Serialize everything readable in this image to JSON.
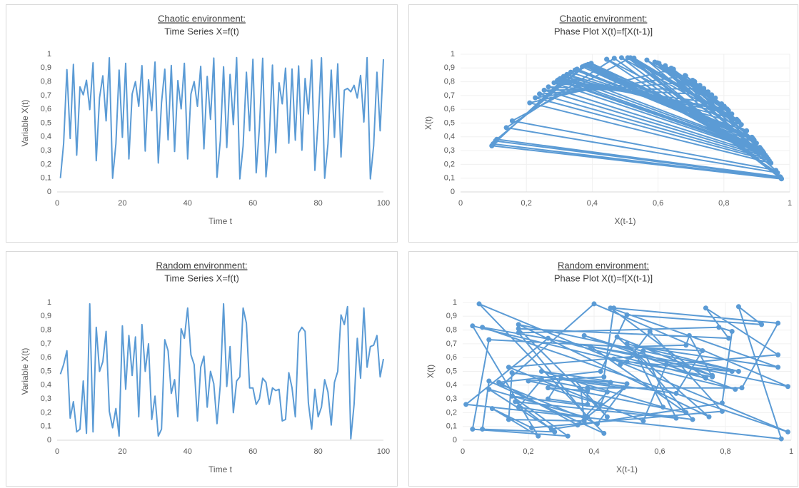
{
  "chart_data": [
    {
      "type": "line",
      "title": "Chaotic environment:",
      "subtitle": "Time Series X=f(t)",
      "x_label": "Time t",
      "y_label": "Variable X(t)",
      "color": "#5b9bd5",
      "xlim": [
        0,
        100
      ],
      "ylim": [
        0,
        1
      ],
      "xticks": [
        0,
        20,
        40,
        60,
        80,
        100
      ],
      "yticks": [
        0,
        {
          "value": 0.1,
          "label": "0,1"
        },
        {
          "value": 0.2,
          "label": "0,2"
        },
        {
          "value": 0.3,
          "label": "0,3"
        },
        {
          "value": 0.4,
          "label": "0,4"
        },
        {
          "value": 0.5,
          "label": "0,5"
        },
        {
          "value": 0.6,
          "label": "0,6"
        },
        {
          "value": 0.7,
          "label": "0,7"
        },
        {
          "value": 0.8,
          "label": "0,8"
        },
        {
          "value": 0.9,
          "label": "0,9"
        },
        1
      ],
      "x": [
        1,
        2,
        3,
        4,
        5,
        6,
        7,
        8,
        9,
        10,
        11,
        12,
        13,
        14,
        15,
        16,
        17,
        18,
        19,
        20,
        21,
        22,
        23,
        24,
        25,
        26,
        27,
        28,
        29,
        30,
        31,
        32,
        33,
        34,
        35,
        36,
        37,
        38,
        39,
        40,
        41,
        42,
        43,
        44,
        45,
        46,
        47,
        48,
        49,
        50,
        51,
        52,
        53,
        54,
        55,
        56,
        57,
        58,
        59,
        60,
        61,
        62,
        63,
        64,
        65,
        66,
        67,
        68,
        69,
        70,
        71,
        72,
        73,
        74,
        75,
        76,
        77,
        78,
        79,
        80,
        81,
        82,
        83,
        84,
        85,
        86,
        87,
        88,
        89,
        90,
        91,
        92,
        93,
        94,
        95,
        96,
        97,
        98,
        99,
        100
      ],
      "values": [
        0.1,
        0.351,
        0.888,
        0.388,
        0.926,
        0.267,
        0.763,
        0.705,
        0.811,
        0.598,
        0.938,
        0.227,
        0.684,
        0.843,
        0.516,
        0.974,
        0.099,
        0.348,
        0.885,
        0.397,
        0.934,
        0.24,
        0.711,
        0.801,
        0.622,
        0.917,
        0.297,
        0.814,
        0.59,
        0.943,
        0.21,
        0.647,
        0.891,
        0.379,
        0.918,
        0.294,
        0.809,
        0.603,
        0.934,
        0.24,
        0.711,
        0.801,
        0.622,
        0.912,
        0.313,
        0.839,
        0.527,
        0.972,
        0.106,
        0.37,
        0.909,
        0.323,
        0.853,
        0.489,
        0.975,
        0.095,
        0.335,
        0.869,
        0.444,
        0.963,
        0.139,
        0.467,
        0.971,
        0.11,
        0.382,
        0.921,
        0.284,
        0.793,
        0.64,
        0.899,
        0.354,
        0.892,
        0.376,
        0.915,
        0.303,
        0.824,
        0.566,
        0.958,
        0.157,
        0.516,
        0.974,
        0.099,
        0.348,
        0.885,
        0.397,
        0.93,
        0.254,
        0.739,
        0.752,
        0.727,
        0.774,
        0.682,
        0.846,
        0.508,
        0.975,
        0.095,
        0.335,
        0.869,
        0.444,
        0.963
      ]
    },
    {
      "type": "scatter",
      "title": "Chaotic environment:",
      "subtitle": "Phase Plot X(t)=f[X(t-1)]",
      "x_label": "X(t-1)",
      "y_label": "X(t)",
      "color": "#5b9bd5",
      "connect": true,
      "xlim": [
        0,
        1
      ],
      "ylim": [
        0,
        1
      ],
      "xticks": [
        0,
        {
          "value": 0.2,
          "label": "0,2"
        },
        {
          "value": 0.4,
          "label": "0,4"
        },
        {
          "value": 0.6,
          "label": "0,6"
        },
        {
          "value": 0.8,
          "label": "0,8"
        },
        1
      ],
      "yticks": [
        0,
        {
          "value": 0.1,
          "label": "0,1"
        },
        {
          "value": 0.2,
          "label": "0,2"
        },
        {
          "value": 0.3,
          "label": "0,3"
        },
        {
          "value": 0.4,
          "label": "0,4"
        },
        {
          "value": 0.5,
          "label": "0,5"
        },
        {
          "value": 0.6,
          "label": "0,6"
        },
        {
          "value": 0.7,
          "label": "0,7"
        },
        {
          "value": 0.8,
          "label": "0,8"
        },
        {
          "value": 0.9,
          "label": "0,9"
        },
        1
      ],
      "x": [
        0.1,
        0.351,
        0.888,
        0.388,
        0.926,
        0.267,
        0.763,
        0.705,
        0.811,
        0.598,
        0.938,
        0.227,
        0.684,
        0.843,
        0.516,
        0.974,
        0.099,
        0.348,
        0.885,
        0.397,
        0.934,
        0.24,
        0.711,
        0.801,
        0.622,
        0.917,
        0.297,
        0.814,
        0.59,
        0.943,
        0.21,
        0.647,
        0.891,
        0.379,
        0.918,
        0.294,
        0.809,
        0.603,
        0.934,
        0.24,
        0.711,
        0.801,
        0.622,
        0.912,
        0.313,
        0.839,
        0.527,
        0.972,
        0.106,
        0.37,
        0.909,
        0.323,
        0.853,
        0.489,
        0.975,
        0.095,
        0.335,
        0.869,
        0.444,
        0.963,
        0.139,
        0.467,
        0.971,
        0.11,
        0.382,
        0.921,
        0.284,
        0.793,
        0.64,
        0.899,
        0.354,
        0.892,
        0.376,
        0.915,
        0.303,
        0.824,
        0.566,
        0.958,
        0.157,
        0.516,
        0.974,
        0.099,
        0.348,
        0.885,
        0.397,
        0.93,
        0.254,
        0.739,
        0.752,
        0.727,
        0.774,
        0.682,
        0.846,
        0.508,
        0.975,
        0.095,
        0.335,
        0.869,
        0.444
      ],
      "y": [
        0.351,
        0.888,
        0.388,
        0.926,
        0.267,
        0.763,
        0.705,
        0.811,
        0.598,
        0.938,
        0.227,
        0.684,
        0.843,
        0.516,
        0.974,
        0.099,
        0.348,
        0.885,
        0.397,
        0.934,
        0.24,
        0.711,
        0.801,
        0.622,
        0.917,
        0.297,
        0.814,
        0.59,
        0.943,
        0.21,
        0.647,
        0.891,
        0.379,
        0.918,
        0.294,
        0.809,
        0.603,
        0.934,
        0.24,
        0.711,
        0.801,
        0.622,
        0.912,
        0.313,
        0.839,
        0.527,
        0.972,
        0.106,
        0.37,
        0.909,
        0.323,
        0.853,
        0.489,
        0.975,
        0.095,
        0.335,
        0.869,
        0.444,
        0.963,
        0.139,
        0.467,
        0.971,
        0.11,
        0.382,
        0.921,
        0.284,
        0.793,
        0.64,
        0.899,
        0.354,
        0.892,
        0.376,
        0.915,
        0.303,
        0.824,
        0.566,
        0.958,
        0.157,
        0.516,
        0.974,
        0.099,
        0.348,
        0.885,
        0.397,
        0.93,
        0.254,
        0.739,
        0.752,
        0.727,
        0.774,
        0.682,
        0.846,
        0.508,
        0.975,
        0.095,
        0.335,
        0.869,
        0.444,
        0.963
      ]
    },
    {
      "type": "line",
      "title": "Random environment:",
      "subtitle": "Time Series X=f(t)",
      "x_label": "Time t",
      "y_label": "Variable X(t)",
      "color": "#5b9bd5",
      "xlim": [
        0,
        100
      ],
      "ylim": [
        0,
        1
      ],
      "xticks": [
        0,
        20,
        40,
        60,
        80,
        100
      ],
      "yticks": [
        0,
        {
          "value": 0.1,
          "label": "0,1"
        },
        {
          "value": 0.2,
          "label": "0,2"
        },
        {
          "value": 0.3,
          "label": "0,3"
        },
        {
          "value": 0.4,
          "label": "0,4"
        },
        {
          "value": 0.5,
          "label": "0,5"
        },
        {
          "value": 0.6,
          "label": "0,6"
        },
        {
          "value": 0.7,
          "label": "0,7"
        },
        {
          "value": 0.8,
          "label": "0,8"
        },
        {
          "value": 0.9,
          "label": "0,9"
        },
        1
      ],
      "x": [
        1,
        2,
        3,
        4,
        5,
        6,
        7,
        8,
        9,
        10,
        11,
        12,
        13,
        14,
        15,
        16,
        17,
        18,
        19,
        20,
        21,
        22,
        23,
        24,
        25,
        26,
        27,
        28,
        29,
        30,
        31,
        32,
        33,
        34,
        35,
        36,
        37,
        38,
        39,
        40,
        41,
        42,
        43,
        44,
        45,
        46,
        47,
        48,
        49,
        50,
        51,
        52,
        53,
        54,
        55,
        56,
        57,
        58,
        59,
        60,
        61,
        62,
        63,
        64,
        65,
        66,
        67,
        68,
        69,
        70,
        71,
        72,
        73,
        74,
        75,
        76,
        77,
        78,
        79,
        80,
        81,
        82,
        83,
        84,
        85,
        86,
        87,
        88,
        89,
        90,
        91,
        92,
        93,
        94,
        95,
        96,
        97,
        98,
        99,
        100
      ],
      "values": [
        0.48,
        0.55,
        0.65,
        0.16,
        0.28,
        0.06,
        0.08,
        0.43,
        0.05,
        0.99,
        0.06,
        0.82,
        0.5,
        0.57,
        0.79,
        0.21,
        0.09,
        0.23,
        0.03,
        0.83,
        0.37,
        0.76,
        0.47,
        0.75,
        0.17,
        0.84,
        0.5,
        0.7,
        0.15,
        0.32,
        0.03,
        0.08,
        0.73,
        0.65,
        0.34,
        0.44,
        0.17,
        0.81,
        0.74,
        0.96,
        0.62,
        0.55,
        0.14,
        0.53,
        0.61,
        0.24,
        0.5,
        0.41,
        0.12,
        0.4,
        0.99,
        0.39,
        0.68,
        0.2,
        0.43,
        0.46,
        0.96,
        0.85,
        0.38,
        0.38,
        0.26,
        0.3,
        0.45,
        0.42,
        0.26,
        0.38,
        0.36,
        0.37,
        0.14,
        0.15,
        0.49,
        0.38,
        0.17,
        0.78,
        0.82,
        0.79,
        0.27,
        0.08,
        0.37,
        0.17,
        0.24,
        0.44,
        0.35,
        0.11,
        0.42,
        0.5,
        0.91,
        0.84,
        0.97,
        0.01,
        0.26,
        0.74,
        0.45,
        0.96,
        0.53,
        0.68,
        0.69,
        0.76,
        0.46,
        0.59
      ]
    },
    {
      "type": "scatter",
      "title": "Random environment:",
      "subtitle": "Phase Plot X(t)=f[X(t-1)]",
      "x_label": "X(t-1)",
      "y_label": "X(t)",
      "color": "#5b9bd5",
      "connect": true,
      "xlim": [
        0,
        1
      ],
      "ylim": [
        0,
        1
      ],
      "xticks": [
        0,
        {
          "value": 0.2,
          "label": "0,2"
        },
        {
          "value": 0.4,
          "label": "0,4"
        },
        {
          "value": 0.6,
          "label": "0,6"
        },
        {
          "value": 0.8,
          "label": "0,8"
        },
        1
      ],
      "yticks": [
        0,
        {
          "value": 0.1,
          "label": "0,1"
        },
        {
          "value": 0.2,
          "label": "0,2"
        },
        {
          "value": 0.3,
          "label": "0,3"
        },
        {
          "value": 0.4,
          "label": "0,4"
        },
        {
          "value": 0.5,
          "label": "0,5"
        },
        {
          "value": 0.6,
          "label": "0,6"
        },
        {
          "value": 0.7,
          "label": "0,7"
        },
        {
          "value": 0.8,
          "label": "0,8"
        },
        {
          "value": 0.9,
          "label": "0,9"
        },
        1
      ],
      "x": [
        0.48,
        0.55,
        0.65,
        0.16,
        0.28,
        0.06,
        0.08,
        0.43,
        0.05,
        0.99,
        0.06,
        0.82,
        0.5,
        0.57,
        0.79,
        0.21,
        0.09,
        0.23,
        0.03,
        0.83,
        0.37,
        0.76,
        0.47,
        0.75,
        0.17,
        0.84,
        0.5,
        0.7,
        0.15,
        0.32,
        0.03,
        0.08,
        0.73,
        0.65,
        0.34,
        0.44,
        0.17,
        0.81,
        0.74,
        0.96,
        0.62,
        0.55,
        0.14,
        0.53,
        0.61,
        0.24,
        0.5,
        0.41,
        0.12,
        0.4,
        0.99,
        0.39,
        0.68,
        0.2,
        0.43,
        0.46,
        0.96,
        0.85,
        0.38,
        0.38,
        0.26,
        0.3,
        0.45,
        0.42,
        0.26,
        0.38,
        0.36,
        0.37,
        0.14,
        0.15,
        0.49,
        0.38,
        0.17,
        0.78,
        0.82,
        0.79,
        0.27,
        0.08,
        0.37,
        0.17,
        0.24,
        0.44,
        0.35,
        0.11,
        0.42,
        0.5,
        0.91,
        0.84,
        0.97,
        0.01,
        0.26,
        0.74,
        0.45,
        0.96,
        0.53,
        0.68,
        0.69,
        0.76,
        0.46
      ],
      "y": [
        0.55,
        0.65,
        0.16,
        0.28,
        0.06,
        0.08,
        0.43,
        0.05,
        0.99,
        0.06,
        0.82,
        0.5,
        0.57,
        0.79,
        0.21,
        0.09,
        0.23,
        0.03,
        0.83,
        0.37,
        0.76,
        0.47,
        0.75,
        0.17,
        0.84,
        0.5,
        0.7,
        0.15,
        0.32,
        0.03,
        0.08,
        0.73,
        0.65,
        0.34,
        0.44,
        0.17,
        0.81,
        0.74,
        0.96,
        0.62,
        0.55,
        0.14,
        0.53,
        0.61,
        0.24,
        0.5,
        0.41,
        0.12,
        0.4,
        0.99,
        0.39,
        0.68,
        0.2,
        0.43,
        0.46,
        0.96,
        0.85,
        0.38,
        0.38,
        0.26,
        0.3,
        0.45,
        0.42,
        0.26,
        0.38,
        0.36,
        0.37,
        0.14,
        0.15,
        0.49,
        0.38,
        0.17,
        0.78,
        0.82,
        0.79,
        0.27,
        0.08,
        0.37,
        0.17,
        0.24,
        0.44,
        0.35,
        0.11,
        0.42,
        0.5,
        0.91,
        0.84,
        0.97,
        0.01,
        0.26,
        0.74,
        0.45,
        0.96,
        0.53,
        0.68,
        0.69,
        0.76,
        0.46,
        0.59
      ]
    }
  ]
}
